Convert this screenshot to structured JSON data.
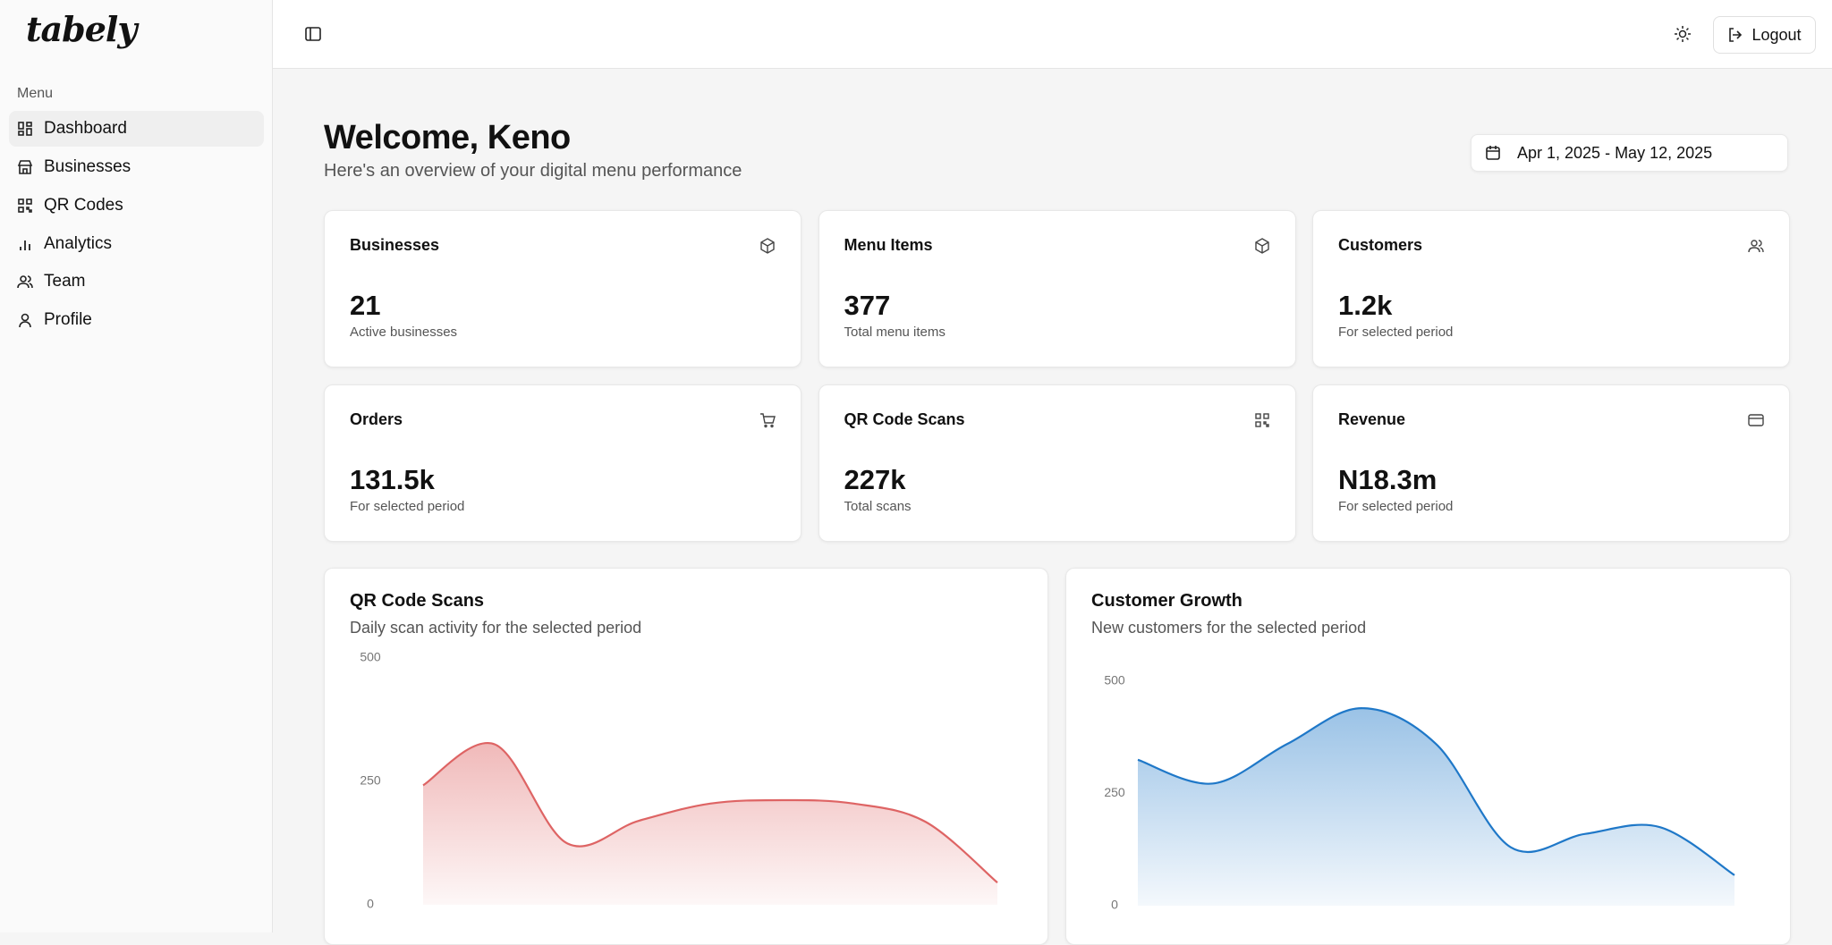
{
  "sidebar": {
    "logo": "tabely",
    "menu_label": "Menu",
    "items": [
      "Dashboard",
      "Businesses",
      "QR Codes",
      "Analytics",
      "Team",
      "Profile"
    ]
  },
  "header": {
    "logout": "Logout"
  },
  "welcome": {
    "title": "Welcome, Keno",
    "subtitle": "Here's an overview of your digital menu performance",
    "date_range": "Apr 1, 2025 - May 12, 2025"
  },
  "stats": [
    {
      "title": "Businesses",
      "value": "21",
      "caption": "Active businesses"
    },
    {
      "title": "Menu Items",
      "value": "377",
      "caption": "Total menu items"
    },
    {
      "title": "Customers",
      "value": "1.2k",
      "caption": "For selected period"
    },
    {
      "title": "Orders",
      "value": "131.5k",
      "caption": "For selected period"
    },
    {
      "title": "QR Code Scans",
      "value": "227k",
      "caption": "Total scans"
    },
    {
      "title": "Revenue",
      "value": "N18.3m",
      "caption": "For selected period"
    }
  ],
  "chart_data": [
    {
      "type": "area",
      "title": "QR Code Scans",
      "subtitle": "Daily scan activity for the selected period",
      "values": [
        242,
        325,
        125,
        170,
        205,
        212,
        205,
        168,
        45
      ],
      "color": "#de6464",
      "ylim": [
        0,
        500
      ],
      "yticks": [
        0,
        250,
        500
      ]
    },
    {
      "type": "area",
      "title": "Customer Growth",
      "subtitle": "New customers for the selected period",
      "values": [
        325,
        272,
        360,
        440,
        360,
        130,
        160,
        175,
        68
      ],
      "color": "#1f78c8",
      "ylim": [
        0,
        500
      ],
      "yticks": [
        0,
        250,
        500
      ]
    }
  ]
}
